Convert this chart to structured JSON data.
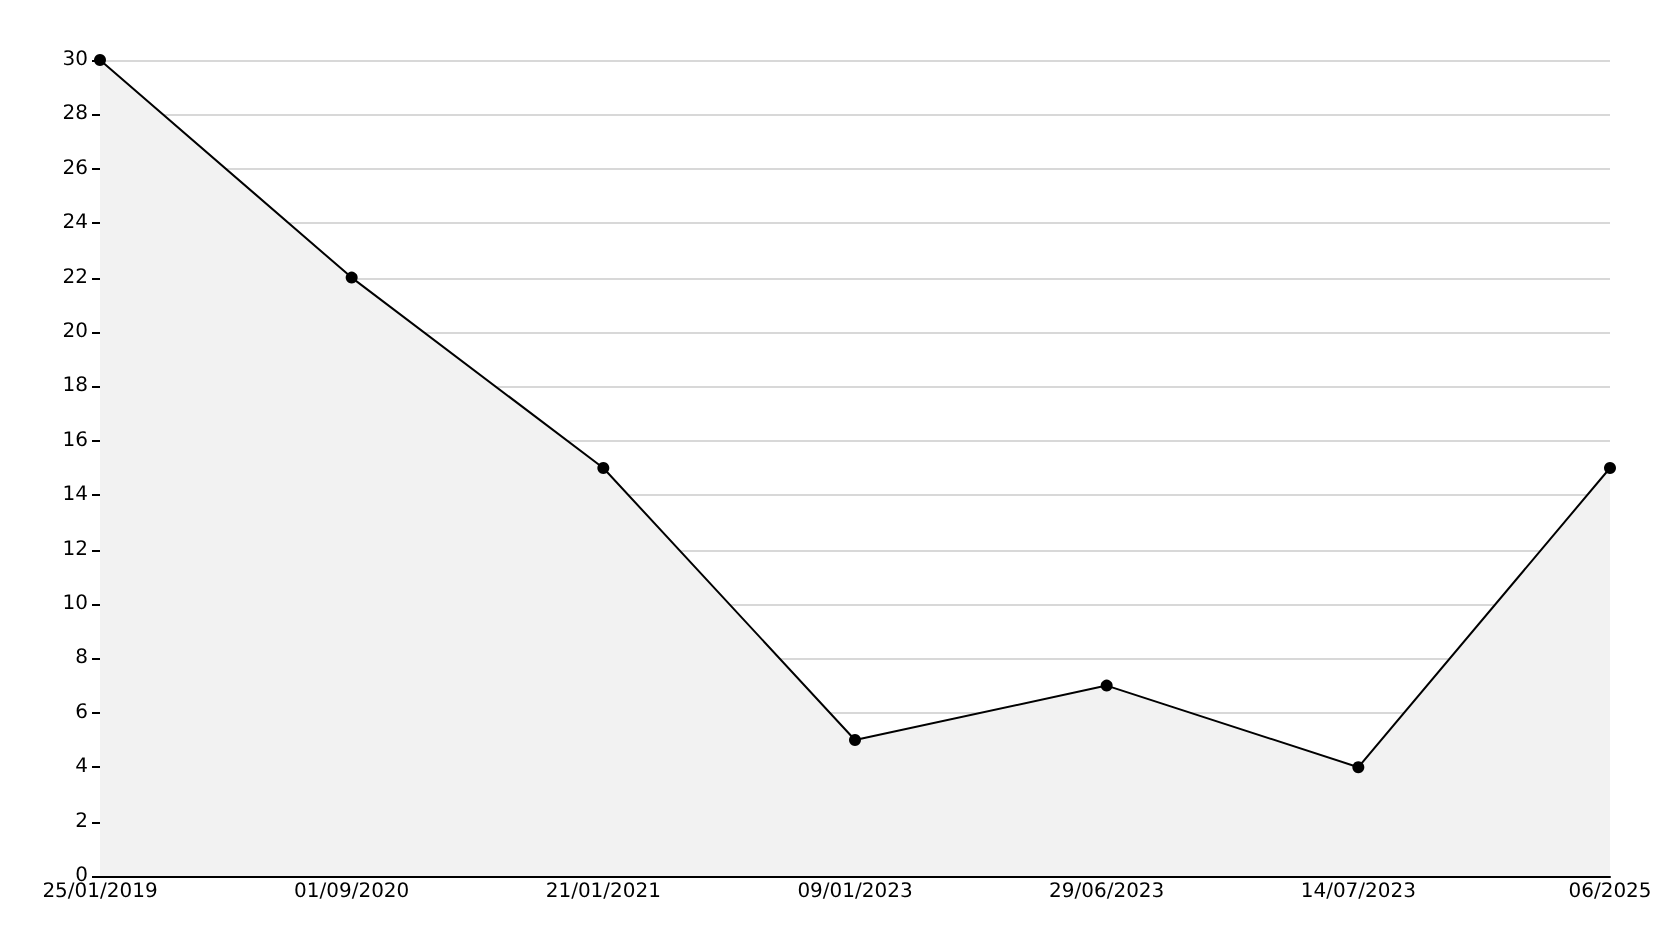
{
  "chart_data": {
    "type": "area",
    "categories": [
      "25/01/2019",
      "01/09/2020",
      "21/01/2021",
      "09/01/2023",
      "29/06/2023",
      "14/07/2023",
      "06/2025"
    ],
    "series": [
      {
        "color": "#000000",
        "values": [
          30,
          22,
          15,
          5,
          7,
          4,
          15
        ]
      }
    ],
    "ylim": [
      0,
      30
    ],
    "yticks": [
      0,
      2,
      4,
      6,
      8,
      10,
      12,
      14,
      16,
      18,
      20,
      22,
      24,
      26,
      28,
      30
    ],
    "grid": "y",
    "marker": "circle",
    "line_style": "solid"
  }
}
